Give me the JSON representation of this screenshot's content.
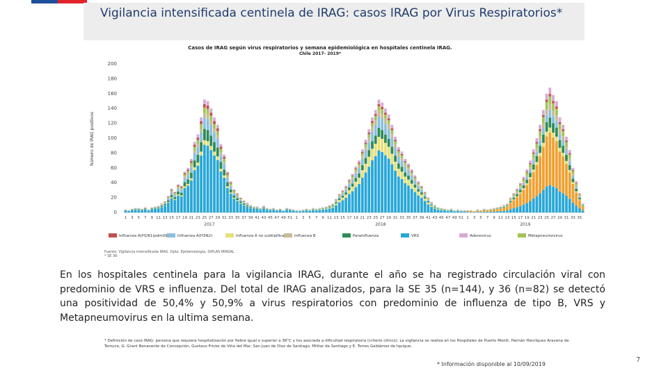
{
  "slide": {
    "title": "Vigilancia intensificada centinela de IRAG: casos IRAG por  Virus Respiratorios*",
    "paragraph": "En los hospitales centinela para la vigilancia IRAG, durante el año se ha registrado circulación viral con predominio de VRS e influenza. Del total de IRAG analizados, para la SE 35 (n=144), y 36 (n=82) se detectó una positividad de 50,4% y 50,9% a virus respiratorios con predominio de  influenza de tipo B, VRS y Metapneumovirus en la ultima semana.",
    "footnote": "* Definición de caso IRAG: persona que requiera hospitalización por fiebre igual o superior a 38°C y tos asociada a dificultad respiratoria (criterio clínico). La vigilancia se realiza en los Hospitales de Puerto Montt, Hernán Henríquez Aravena de Temuco, G. Grant Benavente de Concepción, Gustavo Fricke de Viña del Mar, San Juan de Dios de Santiago, Militar de Santiago y E. Torres Galdámez de Iquique.",
    "info_date": "* Información disponible al 10/09/2019",
    "page_number": "7",
    "flag_colors": {
      "blue": "#1f4e9c",
      "red": "#e3232b"
    }
  },
  "chart_data": {
    "type": "bar",
    "stacked": true,
    "title": "Casos de IRAG según virus respiratorios y semana epidemiológica en hospitales centinela IRAG.",
    "subtitle": "Chile 2017- 2019*",
    "ylabel": "Número de IRAG positivos",
    "ylim": [
      0,
      200
    ],
    "yticks": [
      0,
      20,
      40,
      60,
      80,
      100,
      120,
      140,
      160,
      180,
      200
    ],
    "xlabel_groups": [
      "2017",
      "2018",
      "2019"
    ],
    "source": "Fuente: Vigilancia intensificada IRAG. Dpto. Epidemiología, DIPLAS MINSAL",
    "source_note": "* SE 36",
    "legend": [
      {
        "name": "Influenza A(H1N1)pdm09",
        "color": "#c0504d"
      },
      {
        "name": "Influenza A(H3N2)",
        "color": "#8bbfe0"
      },
      {
        "name": "Influenza A no subtipificado",
        "color": "#e8e07a"
      },
      {
        "name": "Influenza B",
        "color": "#c4bd97"
      },
      {
        "name": "Parainfluenza",
        "color": "#2e8b57"
      },
      {
        "name": "VRS",
        "color": "#29a7d8"
      },
      {
        "name": "Adenovirus",
        "color": "#d9a9d6"
      },
      {
        "name": "Metapneumovirus",
        "color": "#a6c35a"
      }
    ],
    "series_colors": [
      "#29a7d8",
      "#f0a030",
      "#e8e07a",
      "#2e8b57",
      "#8bbfe0",
      "#c4bd97",
      "#a6c35a",
      "#c0504d",
      "#d9a9d6"
    ],
    "weeks": [
      {
        "year": "2017",
        "totals": [
          4,
          3,
          5,
          6,
          6,
          5,
          7,
          4,
          7,
          8,
          9,
          12,
          15,
          22,
          32,
          28,
          38,
          36,
          55,
          60,
          72,
          95,
          105,
          128,
          152,
          150,
          140,
          128,
          118,
          92,
          78,
          55,
          42,
          31,
          26,
          20,
          16,
          13,
          10,
          8,
          8,
          6,
          9,
          6,
          5,
          6,
          4,
          5,
          3,
          6,
          5,
          4
        ],
        "labels": [
          "1",
          "3",
          "5",
          "7",
          "9",
          "11",
          "13",
          "15",
          "17",
          "19",
          "21",
          "23",
          "25",
          "27",
          "29",
          "31",
          "33",
          "35",
          "37",
          "39",
          "41",
          "43",
          "45",
          "47",
          "49",
          "51"
        ]
      },
      {
        "year": "2018",
        "totals": [
          3,
          3,
          4,
          5,
          4,
          6,
          5,
          6,
          7,
          8,
          10,
          12,
          18,
          25,
          30,
          36,
          45,
          52,
          62,
          70,
          85,
          98,
          112,
          128,
          138,
          152,
          148,
          140,
          132,
          118,
          102,
          88,
          82,
          72,
          66,
          58,
          50,
          42,
          36,
          28,
          20,
          14,
          10,
          7,
          6,
          5,
          4,
          5,
          3,
          4,
          3,
          3
        ],
        "labels": [
          "1",
          "3",
          "5",
          "7",
          "9",
          "11",
          "13",
          "15",
          "17",
          "19",
          "21",
          "23",
          "25",
          "27",
          "29",
          "31",
          "33",
          "35",
          "37",
          "39",
          "41",
          "43",
          "45",
          "47",
          "49",
          "51"
        ]
      },
      {
        "year": "2019",
        "totals": [
          3,
          3,
          2,
          4,
          3,
          5,
          4,
          5,
          6,
          7,
          8,
          10,
          12,
          20,
          26,
          32,
          40,
          48,
          58,
          70,
          85,
          100,
          118,
          138,
          160,
          168,
          158,
          150,
          128,
          118,
          102,
          84,
          60,
          42,
          26,
          12
        ],
        "labels": [
          "1",
          "3",
          "5",
          "7",
          "9",
          "11",
          "13",
          "15",
          "17",
          "19",
          "21",
          "23",
          "25",
          "27",
          "29",
          "31",
          "33",
          "35"
        ]
      }
    ]
  }
}
